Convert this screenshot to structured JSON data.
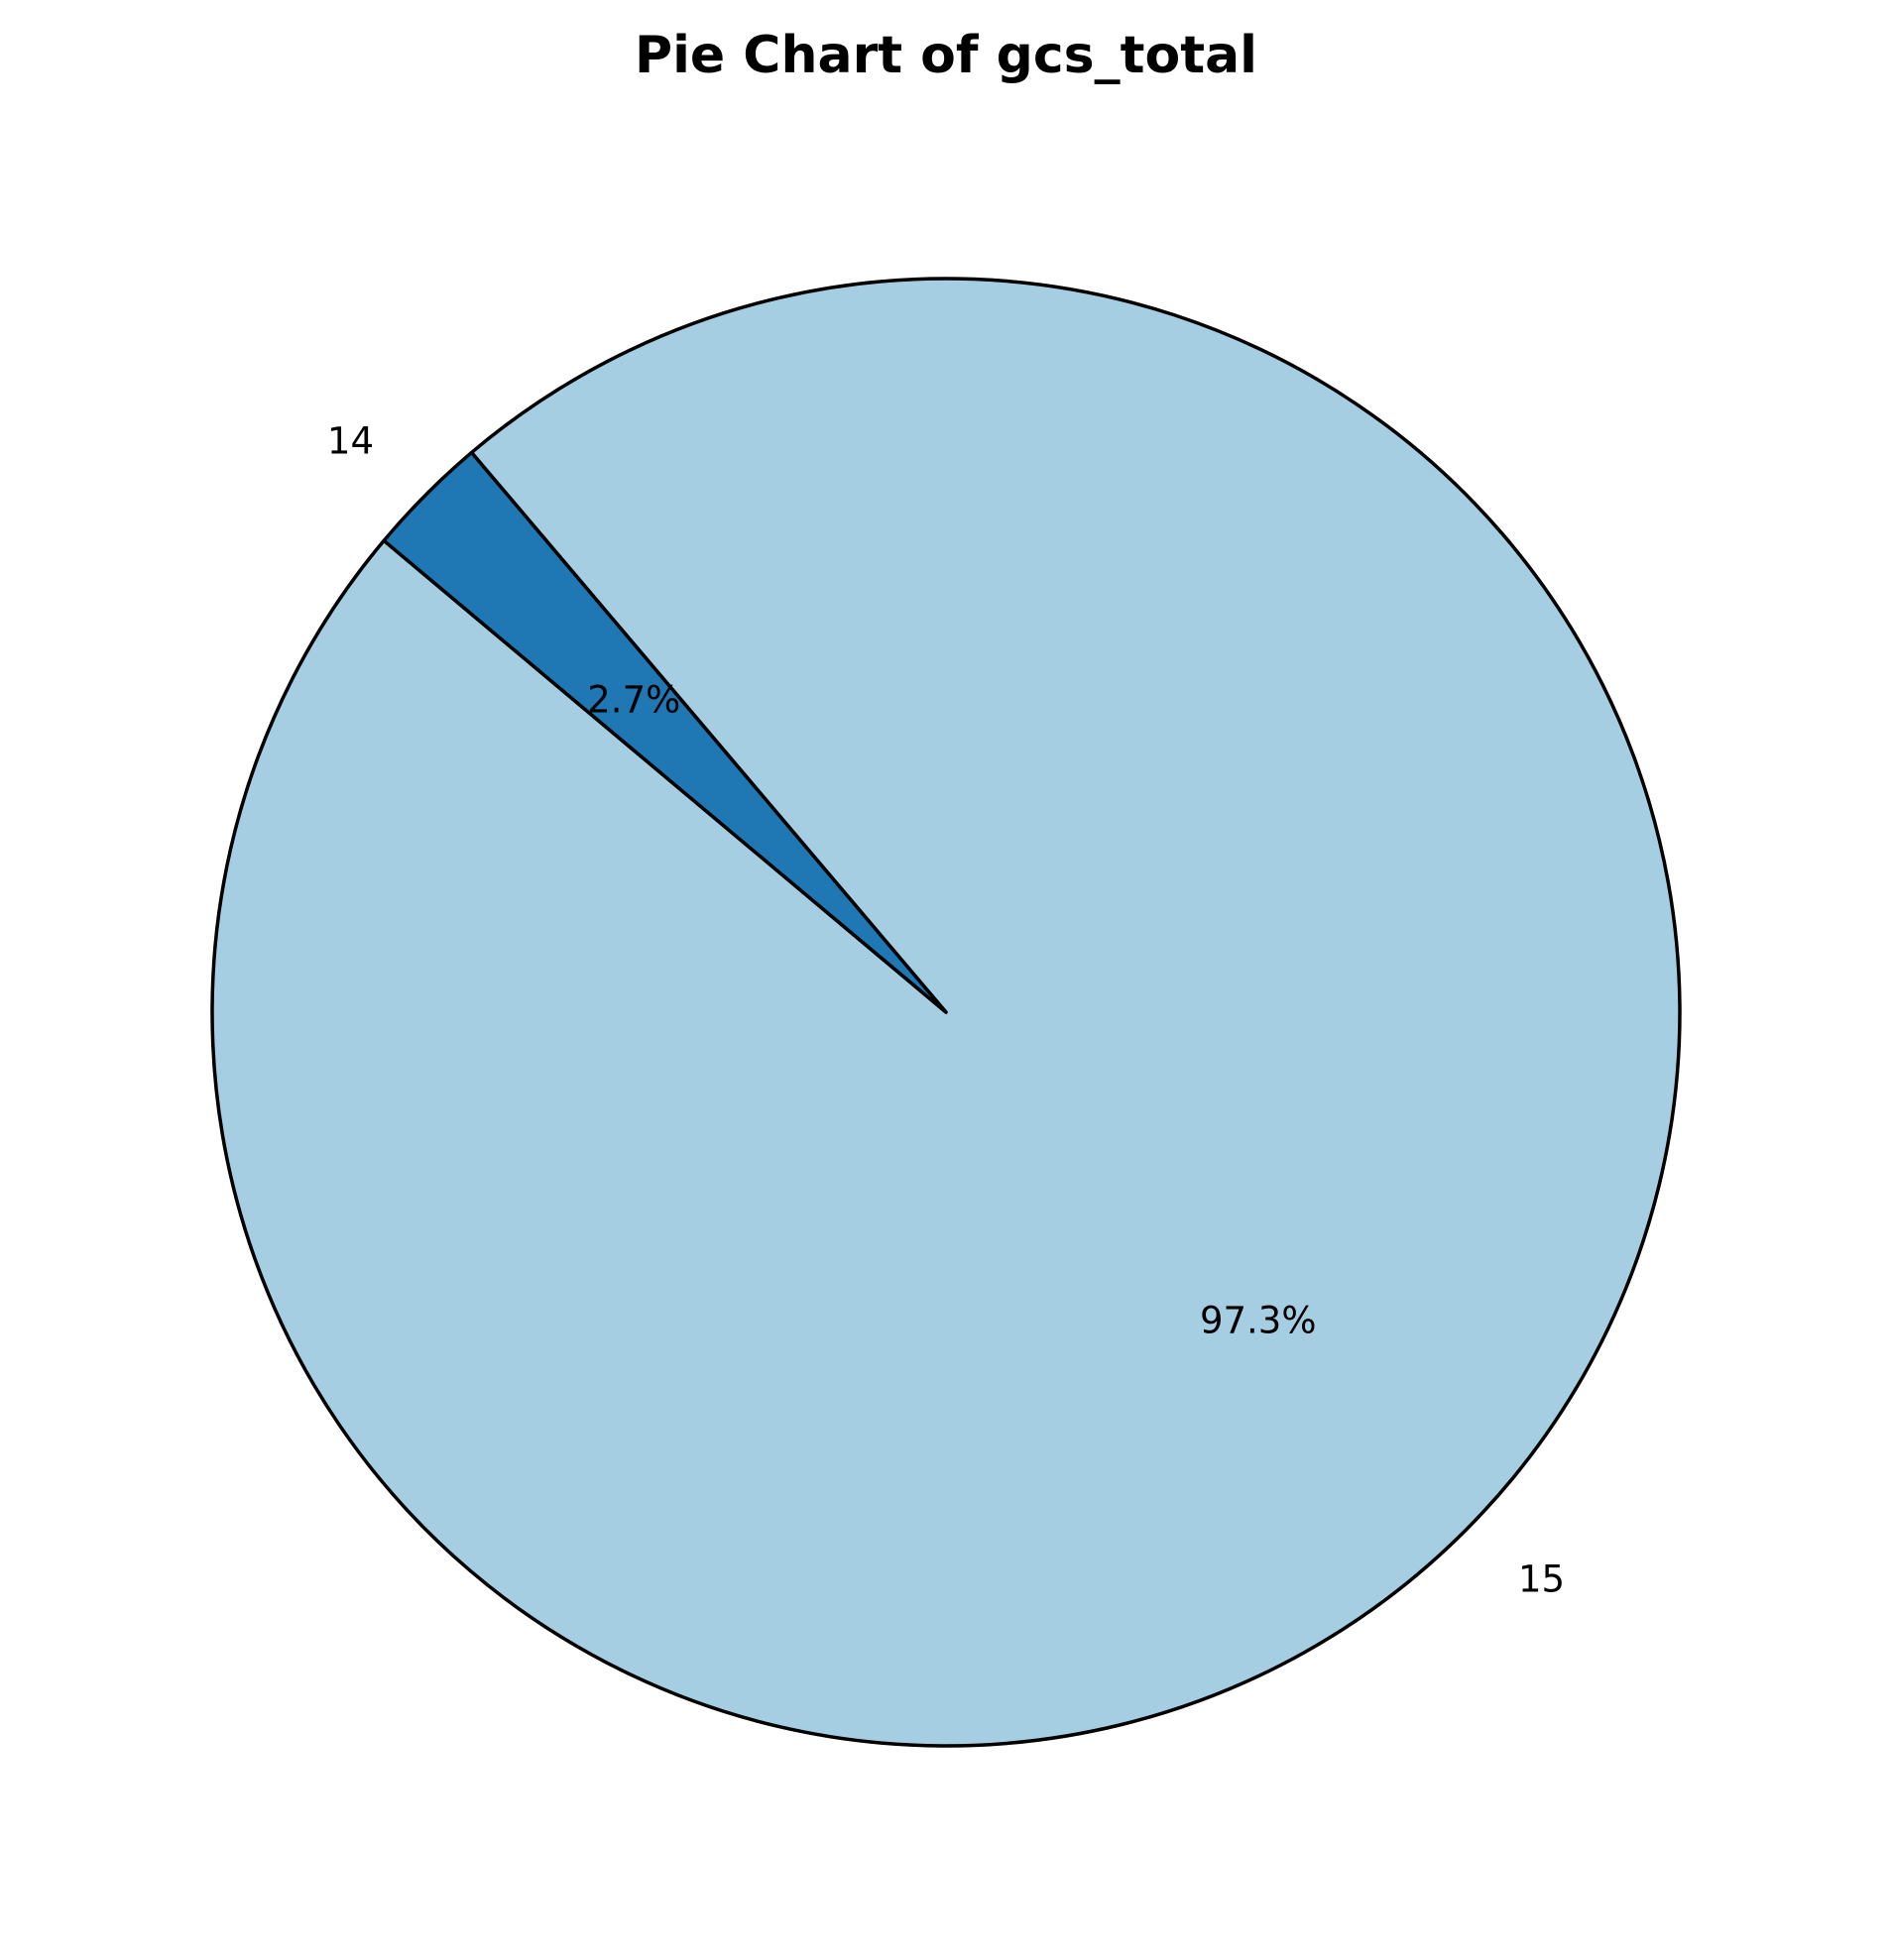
{
  "chart_data": {
    "type": "pie",
    "title": "Pie Chart of gcs_total",
    "start_angle_deg": 140,
    "direction": "counterclockwise",
    "slices": [
      {
        "label": "15",
        "value": 97.3,
        "pct_label": "97.3%",
        "color": "#a6cee3"
      },
      {
        "label": "14",
        "value": 2.7,
        "pct_label": "2.7%",
        "color": "#1f78b4"
      }
    ],
    "edge_color": "#000000"
  }
}
